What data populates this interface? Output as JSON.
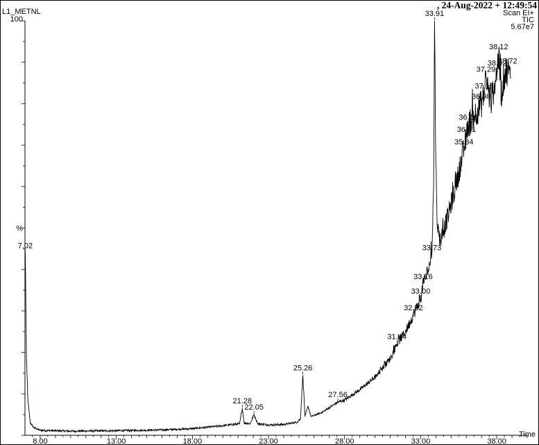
{
  "header": {
    "sample": "L1_METNL",
    "datetime": ",  24-Aug-2022 + 12:49:54",
    "scan": "Scan EI+",
    "tic": "TIC",
    "intensity": "5.67e7"
  },
  "chart_data": {
    "type": "line",
    "title": "",
    "xlabel": "Time",
    "ylabel": "%",
    "xlim": [
      7.0,
      40.0
    ],
    "ylim": [
      0,
      100
    ],
    "x_ticks": [
      "8.00",
      "13.00",
      "18.00",
      "23.00",
      "28.00",
      "33.00",
      "38.00"
    ],
    "y_ticks": [
      "100",
      "%"
    ],
    "series": [
      {
        "name": "",
        "points": [
          [
            7.0,
            42
          ],
          [
            7.02,
            44
          ],
          [
            7.1,
            18
          ],
          [
            7.2,
            8
          ],
          [
            7.35,
            3
          ],
          [
            7.6,
            1.8
          ],
          [
            8.0,
            1.2
          ],
          [
            10.0,
            1.0
          ],
          [
            13.0,
            1.1
          ],
          [
            16.0,
            1.3
          ],
          [
            18.0,
            1.6
          ],
          [
            20.0,
            2.3
          ],
          [
            21.1,
            2.8
          ],
          [
            21.28,
            6.5
          ],
          [
            21.4,
            3.0
          ],
          [
            21.8,
            2.8
          ],
          [
            22.05,
            5.0
          ],
          [
            22.3,
            2.8
          ],
          [
            23.0,
            2.5
          ],
          [
            24.0,
            2.6
          ],
          [
            24.9,
            3.2
          ],
          [
            25.1,
            4.0
          ],
          [
            25.26,
            14.5
          ],
          [
            25.4,
            4.5
          ],
          [
            25.6,
            7.0
          ],
          [
            25.8,
            4.5
          ],
          [
            26.5,
            5.5
          ],
          [
            27.56,
            8.0
          ],
          [
            28.0,
            8.5
          ],
          [
            29.0,
            11.0
          ],
          [
            30.0,
            14.0
          ],
          [
            31.0,
            18.5
          ],
          [
            31.44,
            22.0
          ],
          [
            32.0,
            25.0
          ],
          [
            32.52,
            29.0
          ],
          [
            33.0,
            33.0
          ],
          [
            33.16,
            36.5
          ],
          [
            33.5,
            40.0
          ],
          [
            33.73,
            43.5
          ],
          [
            33.85,
            60.0
          ],
          [
            33.91,
            100.0
          ],
          [
            34.0,
            65.0
          ],
          [
            34.1,
            50.0
          ],
          [
            34.3,
            47.0
          ],
          [
            34.8,
            53.0
          ],
          [
            35.3,
            60.0
          ],
          [
            35.84,
            69.0
          ],
          [
            36.01,
            72.0
          ],
          [
            36.13,
            75.0
          ],
          [
            36.5,
            77.0
          ],
          [
            36.98,
            80.0
          ],
          [
            37.18,
            82.5
          ],
          [
            37.29,
            86.5
          ],
          [
            37.6,
            80.0
          ],
          [
            38.02,
            88.0
          ],
          [
            38.12,
            92.0
          ],
          [
            38.3,
            82.0
          ],
          [
            38.5,
            87.0
          ],
          [
            38.72,
            88.5
          ],
          [
            38.9,
            86.0
          ]
        ]
      }
    ],
    "peak_labels": [
      {
        "label": "7.02",
        "x": 7.02,
        "y": 44.0
      },
      {
        "label": "21.28",
        "x": 21.28,
        "y": 6.5
      },
      {
        "label": "22.05",
        "x": 22.05,
        "y": 5.0
      },
      {
        "label": "25.26",
        "x": 25.26,
        "y": 14.5
      },
      {
        "label": "27.56",
        "x": 27.56,
        "y": 8.0
      },
      {
        "label": "31.44",
        "x": 31.44,
        "y": 22.0
      },
      {
        "label": "32.52",
        "x": 32.52,
        "y": 29.0
      },
      {
        "label": "33.00",
        "x": 33.0,
        "y": 33.0
      },
      {
        "label": "33.16",
        "x": 33.16,
        "y": 36.5
      },
      {
        "label": "33.73",
        "x": 33.73,
        "y": 43.5
      },
      {
        "label": "33.91",
        "x": 33.91,
        "y": 100.0
      },
      {
        "label": "35.84",
        "x": 35.84,
        "y": 69.0
      },
      {
        "label": "36.01",
        "x": 36.01,
        "y": 72.0
      },
      {
        "label": "36.13",
        "x": 36.13,
        "y": 75.0
      },
      {
        "label": "36.98",
        "x": 36.98,
        "y": 80.0
      },
      {
        "label": "37.18",
        "x": 37.18,
        "y": 82.5
      },
      {
        "label": "37.29",
        "x": 37.29,
        "y": 86.5
      },
      {
        "label": "38.02",
        "x": 38.02,
        "y": 88.0
      },
      {
        "label": "38.12",
        "x": 38.12,
        "y": 92.0
      },
      {
        "label": "38.72",
        "x": 38.72,
        "y": 88.5
      }
    ]
  }
}
